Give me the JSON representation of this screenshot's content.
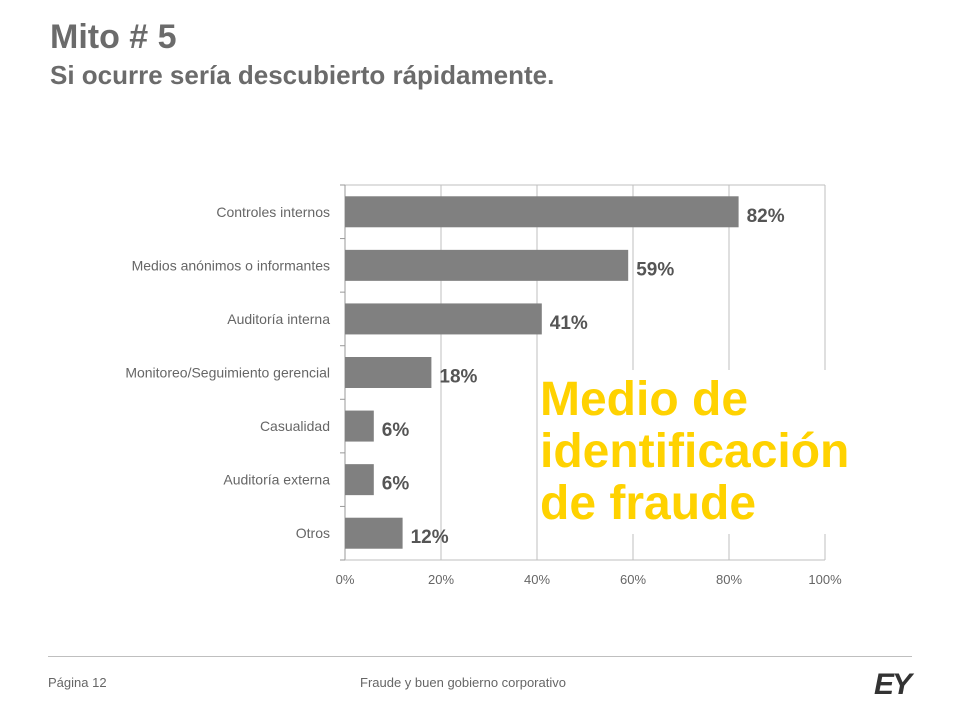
{
  "header": {
    "title": "Mito # 5",
    "subtitle": "Si ocurre sería descubierto rápidamente."
  },
  "callout": {
    "line1": "Medio de",
    "line2": "identificación",
    "line3": "de fraude"
  },
  "footer": {
    "page": "Página 12",
    "text": "Fraude y buen gobierno corporativo",
    "logo": "EY"
  },
  "colors": {
    "bar": "#808080",
    "callout": "#ffd200",
    "grid": "#bfbfbf"
  },
  "chart_data": {
    "type": "bar",
    "orientation": "horizontal",
    "categories": [
      "Controles internos",
      "Medios anónimos o informantes",
      "Auditoría interna",
      "Monitoreo/Seguimiento gerencial",
      "Casualidad",
      "Auditoría externa",
      "Otros"
    ],
    "values": [
      82,
      59,
      41,
      18,
      6,
      6,
      12
    ],
    "data_labels": [
      "82%",
      "59%",
      "41%",
      "18%",
      "6%",
      "6%",
      "12%"
    ],
    "x_ticks": [
      "0%",
      "20%",
      "40%",
      "60%",
      "80%",
      "100%"
    ],
    "xlim": [
      0,
      100
    ],
    "grid": true,
    "legend": "none"
  }
}
